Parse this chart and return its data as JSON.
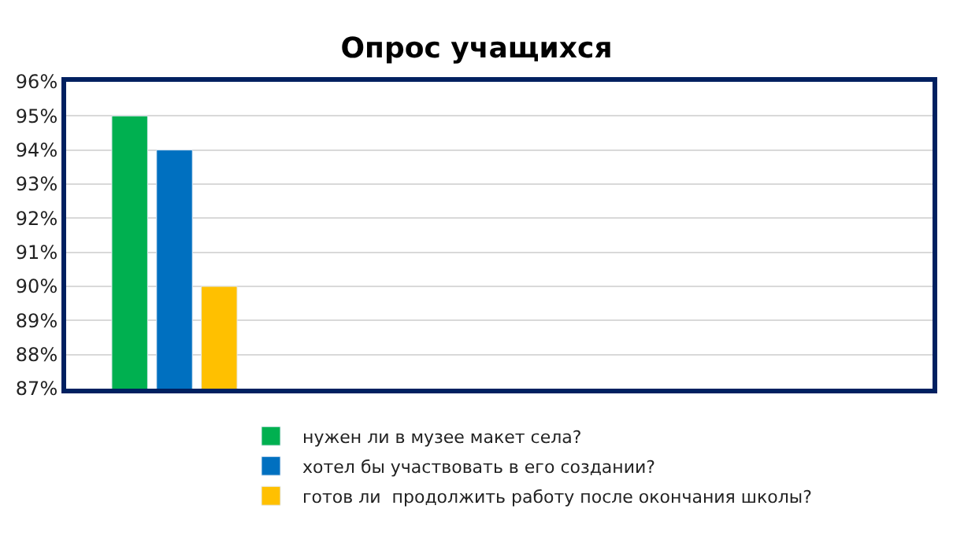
{
  "chart_data": {
    "type": "bar",
    "title": "Опрос учащихся",
    "categories": [
      null,
      null,
      null,
      null
    ],
    "series": [
      {
        "name": "нужен ли в музее макет села?",
        "color": "#00b050",
        "values": [
          95,
          null,
          null,
          null
        ]
      },
      {
        "name": "хотел бы участвовать в его создании?",
        "color": "#0070c0",
        "values": [
          94,
          null,
          null,
          null
        ]
      },
      {
        "name": "готов ли  продолжить работу после окончания школы?",
        "color": "#ffc000",
        "values": [
          90,
          null,
          null,
          null
        ]
      }
    ],
    "ylim": [
      87,
      96
    ],
    "yticks": [
      {
        "value": 87,
        "label": "87%"
      },
      {
        "value": 88,
        "label": "88%"
      },
      {
        "value": 89,
        "label": "89%"
      },
      {
        "value": 90,
        "label": "90%"
      },
      {
        "value": 91,
        "label": "91%"
      },
      {
        "value": 92,
        "label": "92%"
      },
      {
        "value": 93,
        "label": "93%"
      },
      {
        "value": 94,
        "label": "94%"
      },
      {
        "value": 95,
        "label": "95%"
      },
      {
        "value": 96,
        "label": "96%"
      }
    ],
    "grid": "y",
    "legend": "bottom",
    "tick_labels": "y"
  }
}
